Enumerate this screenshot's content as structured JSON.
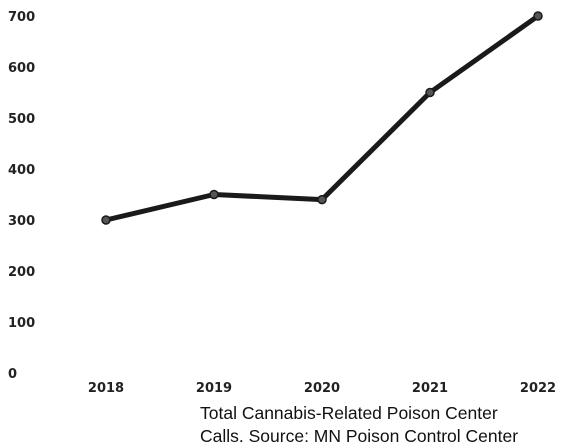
{
  "chart_data": {
    "type": "line",
    "title": "",
    "xlabel": "",
    "ylabel": "",
    "categories": [
      "2018",
      "2019",
      "2020",
      "2021",
      "2022"
    ],
    "series": [
      {
        "values": [
          300,
          350,
          340,
          550,
          700
        ]
      }
    ],
    "ylim": [
      0,
      700
    ],
    "yticks": [
      "0",
      "100",
      "200",
      "300",
      "400",
      "500",
      "600",
      "700"
    ],
    "grid": false,
    "line_color": "#1a1a1a",
    "caption": [
      "Total Cannabis-Related Poison Center",
      "Calls. Source: MN Poison Control Center"
    ]
  }
}
